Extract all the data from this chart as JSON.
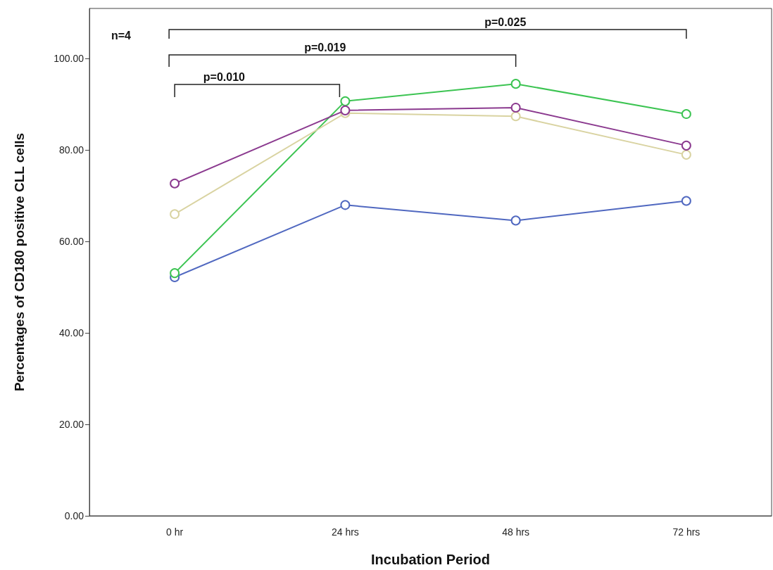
{
  "chart_data": {
    "type": "line",
    "xlabel": "Incubation Period",
    "ylabel": "Percentages of CD180 positive CLL cells",
    "categories": [
      "0 hr",
      "24 hrs",
      "48 hrs",
      "72 hrs"
    ],
    "series": [
      {
        "color": "#8b3a8f",
        "values": [
          72.7,
          88.7,
          89.3,
          81.0
        ]
      },
      {
        "color": "#d9d3a1",
        "values": [
          66.0,
          88.1,
          87.4,
          79.0
        ]
      },
      {
        "color": "#3cc452",
        "values": [
          53.1,
          90.7,
          94.5,
          87.9
        ]
      },
      {
        "color": "#5068c0",
        "values": [
          52.2,
          68.0,
          64.6,
          68.9
        ]
      }
    ],
    "ylim": [
      0,
      111
    ],
    "yticks": [
      {
        "value": 0,
        "label": "0.00"
      },
      {
        "value": 20,
        "label": "20.00"
      },
      {
        "value": 40,
        "label": "40.00"
      },
      {
        "value": 60,
        "label": "60.00"
      },
      {
        "value": 80,
        "label": "80.00"
      },
      {
        "value": 100,
        "label": "100.00"
      }
    ],
    "annotations": [
      "n=4",
      "p=0.010",
      "p=0.019",
      "p=0.025"
    ],
    "marker": "circle",
    "line_style": "solid"
  }
}
